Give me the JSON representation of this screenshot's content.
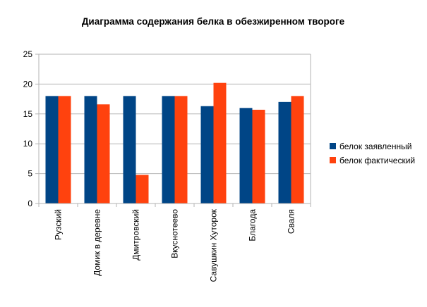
{
  "chart_data": {
    "type": "bar",
    "title": "Диаграмма содержания белка в обезжиренном твороге",
    "xlabel": "",
    "ylabel": "",
    "categories": [
      "Рузский",
      "Домик в деревне",
      "Дмитровский",
      "Вкуснотеево",
      "Савушкин Хуторок",
      "Благода",
      "Сваля"
    ],
    "series": [
      {
        "name": "белок заявленный",
        "color": "#004586",
        "values": [
          18,
          18,
          18,
          18,
          16.3,
          16,
          17
        ]
      },
      {
        "name": "белок фактический",
        "color": "#ff420e",
        "values": [
          18,
          16.6,
          4.8,
          18,
          20.2,
          15.7,
          18
        ]
      }
    ],
    "ylim": [
      0,
      25
    ],
    "yticks": [
      0,
      5,
      10,
      15,
      20,
      25
    ],
    "grid": true,
    "legend_position": "right"
  }
}
